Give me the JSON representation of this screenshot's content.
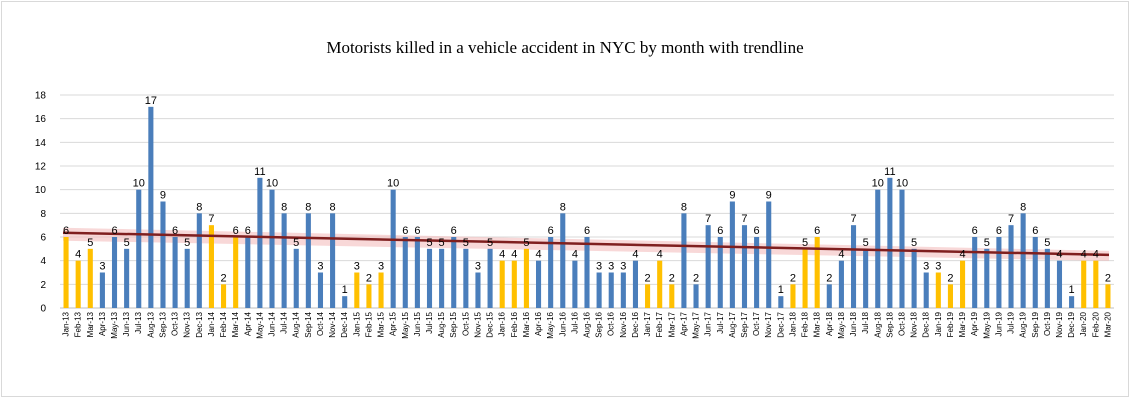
{
  "chart_data": {
    "type": "bar",
    "title": "Motorists killed in a vehicle accident in NYC by month with trendline",
    "xlabel": "",
    "ylabel": "",
    "ylim": [
      0,
      18
    ],
    "yticks": [
      0,
      2,
      4,
      6,
      8,
      10,
      12,
      14,
      16,
      18
    ],
    "grid": true,
    "legend": "none",
    "trendline": "linear",
    "colors": {
      "default": "#4a7ebb",
      "highlight": "#ffc000",
      "trendline": "#7f1f1f",
      "trend_band": "#f2b8b8",
      "grid": "#d9d9d9",
      "axis": "#bfbfbf"
    },
    "categories": [
      "Jan-13",
      "Feb-13",
      "Mar-13",
      "Apr-13",
      "May-13",
      "Jun-13",
      "Jul-13",
      "Aug-13",
      "Sep-13",
      "Oct-13",
      "Nov-13",
      "Dec-13",
      "Jan-14",
      "Feb-14",
      "Mar-14",
      "Apr-14",
      "May-14",
      "Jun-14",
      "Jul-14",
      "Aug-14",
      "Sep-14",
      "Oct-14",
      "Nov-14",
      "Dec-14",
      "Jan-15",
      "Feb-15",
      "Mar-15",
      "Apr-15",
      "May-15",
      "Jun-15",
      "Jul-15",
      "Aug-15",
      "Sep-15",
      "Oct-15",
      "Nov-15",
      "Dec-15",
      "Jan-16",
      "Feb-16",
      "Mar-16",
      "Apr-16",
      "May-16",
      "Jun-16",
      "Jul-16",
      "Aug-16",
      "Sep-16",
      "Oct-16",
      "Nov-16",
      "Dec-16",
      "Jan-17",
      "Feb-17",
      "Mar-17",
      "Apr-17",
      "May-17",
      "Jun-17",
      "Jul-17",
      "Aug-17",
      "Sep-17",
      "Oct-17",
      "Nov-17",
      "Dec-17",
      "Jan-18",
      "Feb-18",
      "Mar-18",
      "Apr-18",
      "May-18",
      "Jun-18",
      "Jul-18",
      "Aug-18",
      "Sep-18",
      "Oct-18",
      "Nov-18",
      "Dec-18",
      "Jan-19",
      "Feb-19",
      "Mar-19",
      "Apr-19",
      "May-19",
      "Jun-19",
      "Jul-19",
      "Aug-19",
      "Sep-19",
      "Oct-19",
      "Nov-19",
      "Dec-19",
      "Jan-20",
      "Feb-20",
      "Mar-20"
    ],
    "values": [
      6,
      4,
      5,
      3,
      6,
      5,
      10,
      17,
      9,
      6,
      5,
      8,
      7,
      2,
      6,
      6,
      11,
      10,
      8,
      5,
      8,
      3,
      8,
      1,
      3,
      2,
      3,
      10,
      6,
      6,
      5,
      5,
      6,
      5,
      3,
      5,
      4,
      4,
      5,
      4,
      6,
      8,
      4,
      6,
      3,
      3,
      3,
      4,
      2,
      4,
      2,
      8,
      2,
      7,
      6,
      9,
      7,
      6,
      9,
      1,
      2,
      5,
      6,
      2,
      4,
      7,
      5,
      10,
      11,
      10,
      5,
      3,
      3,
      2,
      4,
      6,
      5,
      6,
      7,
      8,
      6,
      5,
      4,
      1,
      4,
      4,
      2
    ],
    "highlighted": [
      0,
      1,
      2,
      12,
      13,
      14,
      24,
      25,
      26,
      36,
      37,
      38,
      48,
      49,
      50,
      60,
      61,
      62,
      72,
      73,
      74,
      84,
      85,
      86
    ],
    "data_labels": [
      {
        "index": 0,
        "text": "6"
      },
      {
        "index": 1,
        "text": "4"
      },
      {
        "index": 2,
        "text": "5"
      },
      {
        "index": 3,
        "text": "3"
      },
      {
        "index": 4,
        "text": "6"
      },
      {
        "index": 5,
        "text": "5"
      },
      {
        "index": 6,
        "text": "10"
      },
      {
        "index": 7,
        "text": "17"
      },
      {
        "index": 8,
        "text": "9"
      },
      {
        "index": 9,
        "text": "6"
      },
      {
        "index": 10,
        "text": "5"
      },
      {
        "index": 11,
        "text": "8"
      },
      {
        "index": 12,
        "text": "7"
      },
      {
        "index": 13,
        "text": "2"
      },
      {
        "index": 14,
        "text": "6"
      },
      {
        "index": 15,
        "text": "6"
      },
      {
        "index": 16,
        "text": "11"
      },
      {
        "index": 17,
        "text": "10"
      },
      {
        "index": 18,
        "text": "8"
      },
      {
        "index": 19,
        "text": "5"
      },
      {
        "index": 20,
        "text": "8"
      },
      {
        "index": 21,
        "text": "3"
      },
      {
        "index": 22,
        "text": "8"
      },
      {
        "index": 23,
        "text": "1"
      },
      {
        "index": 24,
        "text": "3"
      },
      {
        "index": 25,
        "text": "2"
      },
      {
        "index": 26,
        "text": "3"
      },
      {
        "index": 27,
        "text": "10"
      },
      {
        "index": 28,
        "text": "6"
      },
      {
        "index": 29,
        "text": "6"
      },
      {
        "index": 30,
        "text": "5"
      },
      {
        "index": 31,
        "text": "5"
      },
      {
        "index": 32,
        "text": "6"
      },
      {
        "index": 33,
        "text": "5"
      },
      {
        "index": 34,
        "text": "3"
      },
      {
        "index": 35,
        "text": "5"
      },
      {
        "index": 36,
        "text": "4"
      },
      {
        "index": 37,
        "text": "4"
      },
      {
        "index": 38,
        "text": "5"
      },
      {
        "index": 39,
        "text": "4"
      },
      {
        "index": 40,
        "text": "6"
      },
      {
        "index": 41,
        "text": "8"
      },
      {
        "index": 42,
        "text": "4"
      },
      {
        "index": 43,
        "text": "6"
      },
      {
        "index": 44,
        "text": "3"
      },
      {
        "index": 45,
        "text": "3"
      },
      {
        "index": 46,
        "text": "3"
      },
      {
        "index": 47,
        "text": "4"
      },
      {
        "index": 48,
        "text": "2"
      },
      {
        "index": 49,
        "text": "4"
      },
      {
        "index": 50,
        "text": "2"
      },
      {
        "index": 51,
        "text": "8"
      },
      {
        "index": 52,
        "text": "2"
      },
      {
        "index": 53,
        "text": "7"
      },
      {
        "index": 54,
        "text": "6"
      },
      {
        "index": 55,
        "text": "9"
      },
      {
        "index": 56,
        "text": "7"
      },
      {
        "index": 57,
        "text": "6"
      },
      {
        "index": 58,
        "text": "9"
      },
      {
        "index": 59,
        "text": "1"
      },
      {
        "index": 60,
        "text": "2"
      },
      {
        "index": 61,
        "text": "5"
      },
      {
        "index": 62,
        "text": "6"
      },
      {
        "index": 63,
        "text": "2"
      },
      {
        "index": 64,
        "text": "4"
      },
      {
        "index": 65,
        "text": "7"
      },
      {
        "index": 66,
        "text": "5"
      },
      {
        "index": 67,
        "text": "10"
      },
      {
        "index": 68,
        "text": "11"
      },
      {
        "index": 69,
        "text": "10"
      },
      {
        "index": 70,
        "text": "5"
      },
      {
        "index": 71,
        "text": "3"
      },
      {
        "index": 72,
        "text": "3"
      },
      {
        "index": 73,
        "text": "2"
      },
      {
        "index": 74,
        "text": "4"
      },
      {
        "index": 75,
        "text": "6"
      },
      {
        "index": 76,
        "text": "5"
      },
      {
        "index": 77,
        "text": "6"
      },
      {
        "index": 78,
        "text": "7"
      },
      {
        "index": 79,
        "text": "8"
      },
      {
        "index": 80,
        "text": "6"
      },
      {
        "index": 81,
        "text": "5"
      },
      {
        "index": 82,
        "text": "4"
      },
      {
        "index": 83,
        "text": "1"
      },
      {
        "index": 84,
        "text": "4"
      },
      {
        "index": 85,
        "text": "4"
      },
      {
        "index": 86,
        "text": "2"
      }
    ]
  }
}
